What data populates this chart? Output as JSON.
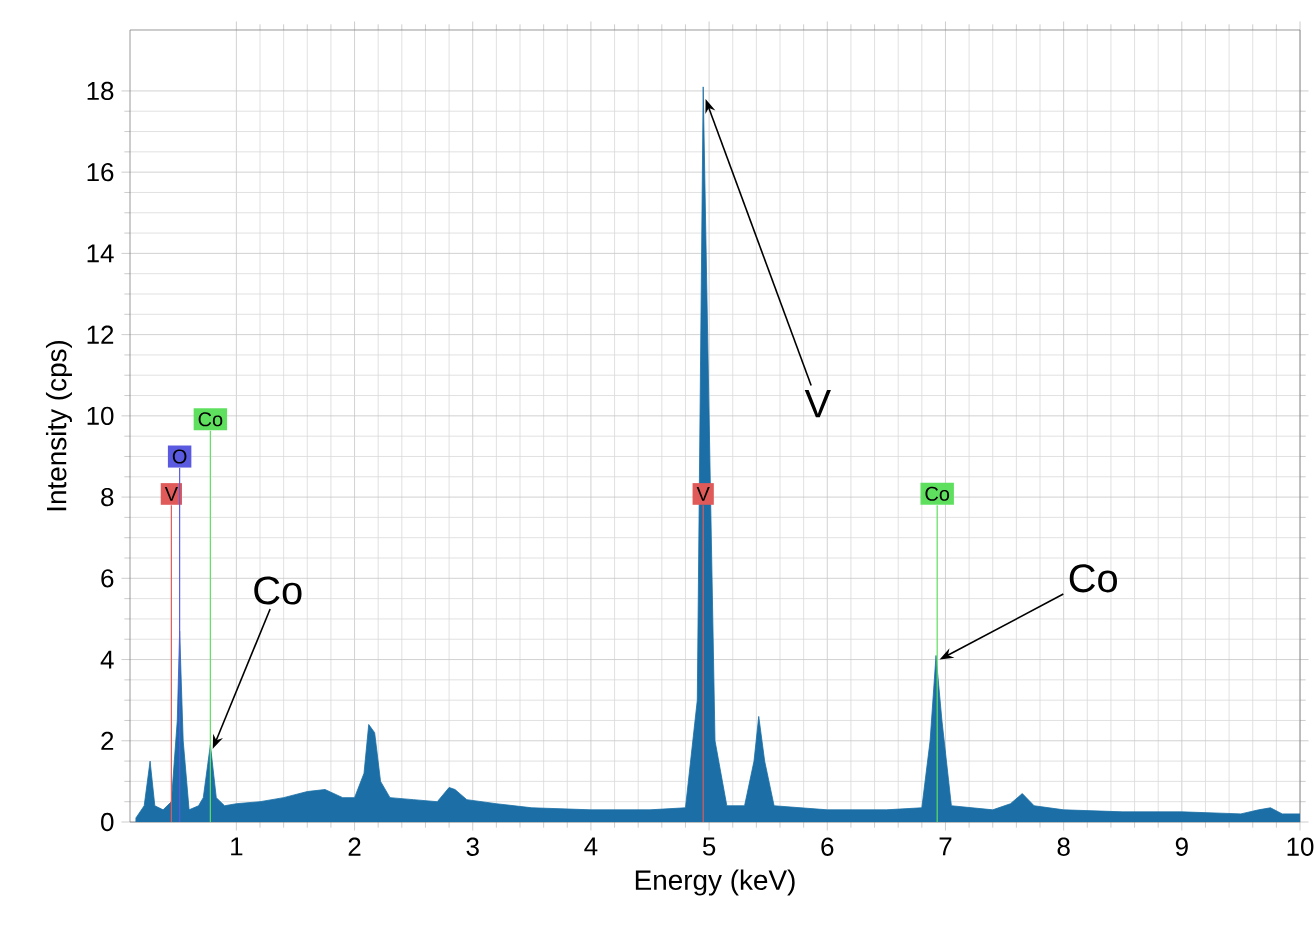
{
  "chart_data": {
    "type": "area",
    "xlabel": "Energy (keV)",
    "ylabel": "Intensity (cps)",
    "xlim": [
      0.1,
      10
    ],
    "ylim": [
      0,
      19.5
    ],
    "xticks": [
      1,
      2,
      3,
      4,
      5,
      6,
      7,
      8,
      9,
      10
    ],
    "yticks": [
      0,
      2,
      4,
      6,
      8,
      10,
      12,
      14,
      16,
      18
    ],
    "grid": true,
    "series": [
      {
        "color": "#1b6fa6",
        "x": [
          0.15,
          0.22,
          0.27,
          0.31,
          0.38,
          0.45,
          0.5,
          0.52,
          0.55,
          0.6,
          0.68,
          0.72,
          0.78,
          0.83,
          0.9,
          1.0,
          1.2,
          1.4,
          1.6,
          1.75,
          1.9,
          2.0,
          2.08,
          2.12,
          2.17,
          2.22,
          2.3,
          2.5,
          2.7,
          2.8,
          2.85,
          2.95,
          3.2,
          3.5,
          4.0,
          4.5,
          4.8,
          4.9,
          4.95,
          5.0,
          5.05,
          5.15,
          5.3,
          5.38,
          5.42,
          5.47,
          5.55,
          6.0,
          6.5,
          6.8,
          6.87,
          6.92,
          6.97,
          7.05,
          7.4,
          7.55,
          7.65,
          7.75,
          8.0,
          8.5,
          9.0,
          9.5,
          9.65,
          9.75,
          9.85,
          10.0
        ],
        "values": [
          0.1,
          0.4,
          1.5,
          0.4,
          0.3,
          0.5,
          2.5,
          4.7,
          2.0,
          0.3,
          0.4,
          0.6,
          1.9,
          0.6,
          0.4,
          0.45,
          0.5,
          0.6,
          0.75,
          0.8,
          0.6,
          0.6,
          1.2,
          2.4,
          2.2,
          1.0,
          0.6,
          0.55,
          0.5,
          0.85,
          0.8,
          0.55,
          0.45,
          0.35,
          0.3,
          0.3,
          0.35,
          3,
          18.1,
          10,
          2,
          0.4,
          0.4,
          1.5,
          2.6,
          1.5,
          0.4,
          0.3,
          0.3,
          0.35,
          2,
          4.1,
          2.5,
          0.4,
          0.3,
          0.45,
          0.7,
          0.4,
          0.3,
          0.25,
          0.25,
          0.2,
          0.3,
          0.35,
          0.2,
          0.2
        ]
      }
    ],
    "ref_lines": [
      {
        "axis": "x",
        "value": 0.45,
        "label": "V",
        "color": "#e05a5a"
      },
      {
        "axis": "x",
        "value": 0.52,
        "label": "O",
        "color": "#5a5ae0"
      },
      {
        "axis": "x",
        "value": 0.78,
        "label": "Co",
        "color": "#5ee05e"
      },
      {
        "axis": "x",
        "value": 4.95,
        "label": "V",
        "color": "#e05a5a"
      },
      {
        "axis": "x",
        "value": 6.93,
        "label": "Co",
        "color": "#5ee05e"
      }
    ],
    "annotations": [
      {
        "text": "Co",
        "x": 0.8,
        "y": 1.8
      },
      {
        "text": "V",
        "x": 4.97,
        "y": 17.8
      },
      {
        "text": "Co",
        "x": 6.95,
        "y": 4.0
      }
    ]
  }
}
